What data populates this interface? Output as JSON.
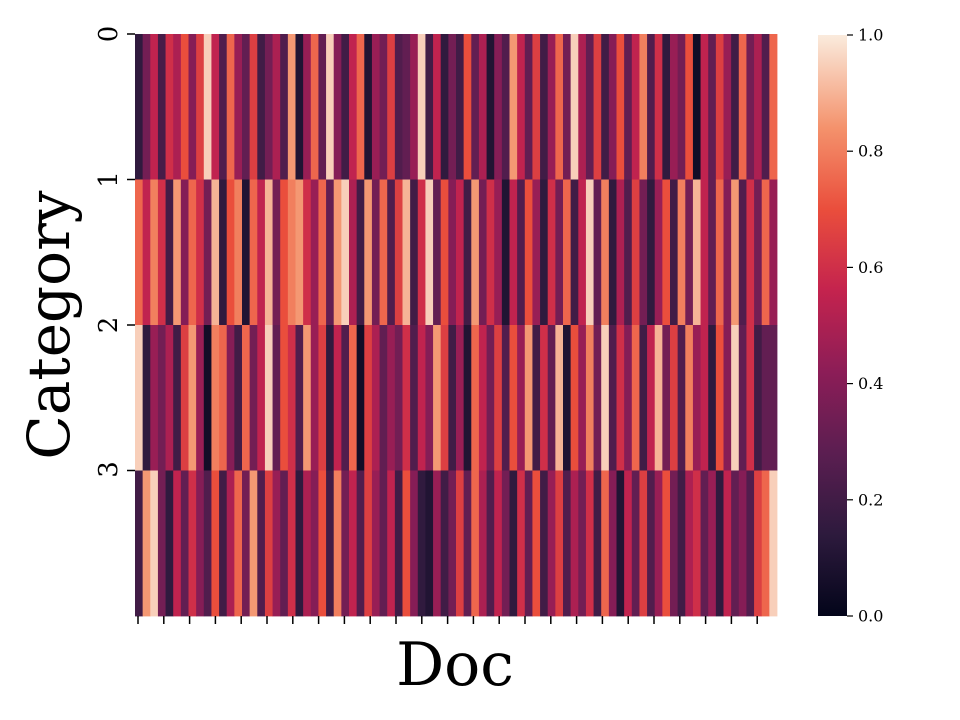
{
  "chart_data": {
    "type": "heatmap",
    "xlabel": "Doc",
    "ylabel": "Category",
    "y_categories": [
      "0",
      "1",
      "2",
      "3"
    ],
    "n_columns": 84,
    "x_tick_count": 25,
    "colorscale": "rocket",
    "colorbar": {
      "range": [
        0.0,
        1.0
      ],
      "ticks": [
        "0.0",
        "0.2",
        "0.4",
        "0.6",
        "0.8",
        "1.0"
      ]
    },
    "values": [
      [
        0.15,
        0.35,
        0.55,
        0.22,
        0.6,
        0.5,
        0.7,
        0.4,
        0.65,
        0.95,
        0.55,
        0.25,
        0.75,
        0.45,
        0.3,
        0.65,
        0.2,
        0.35,
        0.5,
        0.25,
        0.85,
        0.1,
        0.45,
        0.75,
        0.3,
        0.95,
        0.4,
        0.2,
        0.55,
        0.75,
        0.1,
        0.45,
        0.35,
        0.65,
        0.25,
        0.3,
        0.45,
        0.95,
        0.2,
        0.55,
        0.15,
        0.35,
        0.2,
        0.7,
        0.3,
        0.5,
        0.1,
        0.4,
        0.25,
        0.85,
        0.55,
        0.3,
        0.65,
        0.2,
        0.45,
        0.75,
        0.35,
        0.95,
        0.5,
        0.3,
        0.65,
        0.2,
        0.4,
        0.7,
        0.3,
        0.55,
        0.8,
        0.25,
        0.6,
        0.15,
        0.45,
        0.35,
        0.7,
        0.05,
        0.55,
        0.3,
        0.65,
        0.45,
        0.2,
        0.75,
        0.35,
        0.5,
        0.25,
        0.75
      ],
      [
        0.75,
        0.55,
        0.8,
        0.6,
        0.2,
        0.85,
        0.4,
        0.75,
        0.6,
        0.35,
        0.9,
        0.15,
        0.7,
        0.8,
        0.1,
        0.75,
        0.55,
        0.9,
        0.35,
        0.7,
        0.8,
        0.85,
        0.6,
        0.45,
        0.75,
        0.3,
        0.85,
        0.95,
        0.5,
        0.2,
        0.85,
        0.35,
        0.75,
        0.25,
        0.65,
        0.9,
        0.2,
        0.6,
        0.95,
        0.3,
        0.7,
        0.4,
        0.55,
        0.2,
        0.85,
        0.35,
        0.6,
        0.45,
        0.1,
        0.55,
        0.25,
        0.7,
        0.45,
        0.15,
        0.6,
        0.35,
        0.75,
        0.2,
        0.55,
        0.95,
        0.3,
        0.8,
        0.15,
        0.5,
        0.25,
        0.65,
        0.35,
        0.15,
        0.45,
        0.7,
        0.2,
        0.8,
        0.35,
        0.9,
        0.55,
        0.3,
        0.75,
        0.4,
        0.85,
        0.25,
        0.6,
        0.35,
        0.75,
        0.45
      ],
      [
        0.95,
        0.15,
        0.45,
        0.35,
        0.5,
        0.2,
        0.65,
        0.85,
        0.45,
        0.05,
        0.8,
        0.75,
        0.4,
        0.2,
        0.75,
        0.35,
        0.55,
        0.95,
        0.3,
        0.7,
        0.6,
        0.25,
        0.85,
        0.45,
        0.65,
        0.15,
        0.55,
        0.25,
        0.75,
        0.05,
        0.65,
        0.5,
        0.3,
        0.45,
        0.35,
        0.6,
        0.25,
        0.55,
        0.4,
        0.85,
        0.65,
        0.2,
        0.45,
        0.1,
        0.75,
        0.55,
        0.35,
        0.65,
        0.25,
        0.7,
        0.45,
        0.85,
        0.2,
        0.6,
        0.3,
        0.9,
        0.1,
        0.7,
        0.45,
        0.8,
        0.35,
        0.95,
        0.25,
        0.6,
        0.4,
        0.75,
        0.2,
        0.55,
        0.9,
        0.35,
        0.65,
        0.25,
        0.8,
        0.45,
        0.55,
        0.15,
        0.7,
        0.4,
        0.95,
        0.3,
        0.6,
        0.2,
        0.3,
        0.3
      ],
      [
        0.2,
        0.85,
        0.95,
        0.35,
        0.15,
        0.55,
        0.3,
        0.6,
        0.4,
        0.25,
        0.7,
        0.2,
        0.5,
        0.75,
        0.35,
        0.85,
        0.25,
        0.65,
        0.45,
        0.3,
        0.6,
        0.15,
        0.5,
        0.4,
        0.7,
        0.2,
        0.8,
        0.35,
        0.55,
        0.25,
        0.65,
        0.45,
        0.3,
        0.55,
        0.2,
        0.7,
        0.4,
        0.15,
        0.1,
        0.45,
        0.2,
        0.35,
        0.65,
        0.3,
        0.75,
        0.5,
        0.25,
        0.55,
        0.35,
        0.15,
        0.6,
        0.3,
        0.7,
        0.2,
        0.45,
        0.65,
        0.25,
        0.5,
        0.35,
        0.6,
        0.2,
        0.75,
        0.4,
        0.1,
        0.55,
        0.3,
        0.65,
        0.25,
        0.45,
        0.7,
        0.35,
        0.2,
        0.5,
        0.6,
        0.3,
        0.45,
        0.15,
        0.55,
        0.3,
        0.4,
        0.25,
        0.65,
        0.75,
        0.95
      ]
    ]
  }
}
